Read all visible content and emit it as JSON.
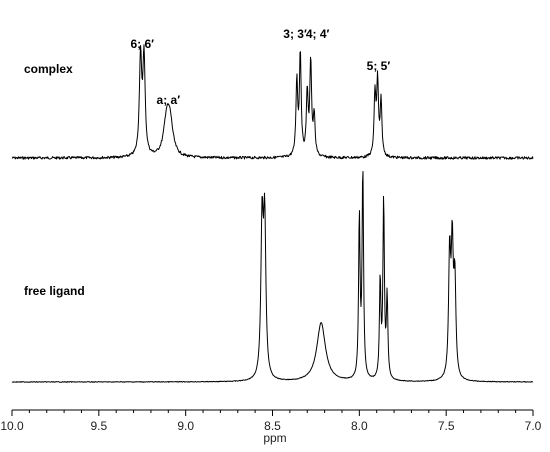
{
  "chart_data": {
    "type": "line",
    "xlabel": "ppm",
    "xlim": [
      10.0,
      7.0
    ],
    "x_reversed": true,
    "ticks": [
      "10.0",
      "9.5",
      "9.0",
      "8.5",
      "8.0",
      "7.5",
      "7.0"
    ],
    "tick_values": [
      10.0,
      9.5,
      9.0,
      8.5,
      8.0,
      7.5,
      7.0
    ],
    "minor_tick_step": 0.1,
    "series": [
      {
        "name": "complex",
        "peaks": [
          {
            "ppm": 9.26,
            "height": 0.95,
            "width": 0.008
          },
          {
            "ppm": 9.24,
            "height": 0.95,
            "width": 0.008
          },
          {
            "ppm": 9.11,
            "height": 0.33,
            "width": 0.02
          },
          {
            "ppm": 9.09,
            "height": 0.31,
            "width": 0.02
          },
          {
            "ppm": 8.36,
            "height": 0.73,
            "width": 0.006
          },
          {
            "ppm": 8.34,
            "height": 1.0,
            "width": 0.006
          },
          {
            "ppm": 8.3,
            "height": 0.62,
            "width": 0.006
          },
          {
            "ppm": 8.28,
            "height": 0.92,
            "width": 0.006
          },
          {
            "ppm": 8.26,
            "height": 0.39,
            "width": 0.006
          },
          {
            "ppm": 7.91,
            "height": 0.6,
            "width": 0.006
          },
          {
            "ppm": 7.895,
            "height": 0.72,
            "width": 0.006
          },
          {
            "ppm": 7.875,
            "height": 0.53,
            "width": 0.006
          }
        ]
      },
      {
        "name": "free ligand",
        "peaks": [
          {
            "ppm": 8.56,
            "height": 0.73,
            "width": 0.008
          },
          {
            "ppm": 8.545,
            "height": 0.73,
            "width": 0.008
          },
          {
            "ppm": 8.22,
            "height": 0.28,
            "width": 0.03
          },
          {
            "ppm": 8.0,
            "height": 0.77,
            "width": 0.005
          },
          {
            "ppm": 7.98,
            "height": 1.0,
            "width": 0.005
          },
          {
            "ppm": 7.88,
            "height": 0.47,
            "width": 0.005
          },
          {
            "ppm": 7.86,
            "height": 0.85,
            "width": 0.005
          },
          {
            "ppm": 7.84,
            "height": 0.39,
            "width": 0.005
          },
          {
            "ppm": 7.48,
            "height": 0.58,
            "width": 0.007
          },
          {
            "ppm": 7.465,
            "height": 0.6,
            "width": 0.007
          },
          {
            "ppm": 7.45,
            "height": 0.45,
            "width": 0.007
          }
        ]
      }
    ],
    "peak_annotations": [
      {
        "text": "6; 6′",
        "ppm": 9.25
      },
      {
        "text": "a; a′",
        "ppm": 9.1
      },
      {
        "text": "3; 3′",
        "ppm": 8.37
      },
      {
        "text": "4; 4′",
        "ppm": 8.24
      },
      {
        "text": "5; 5′",
        "ppm": 7.89
      }
    ]
  }
}
